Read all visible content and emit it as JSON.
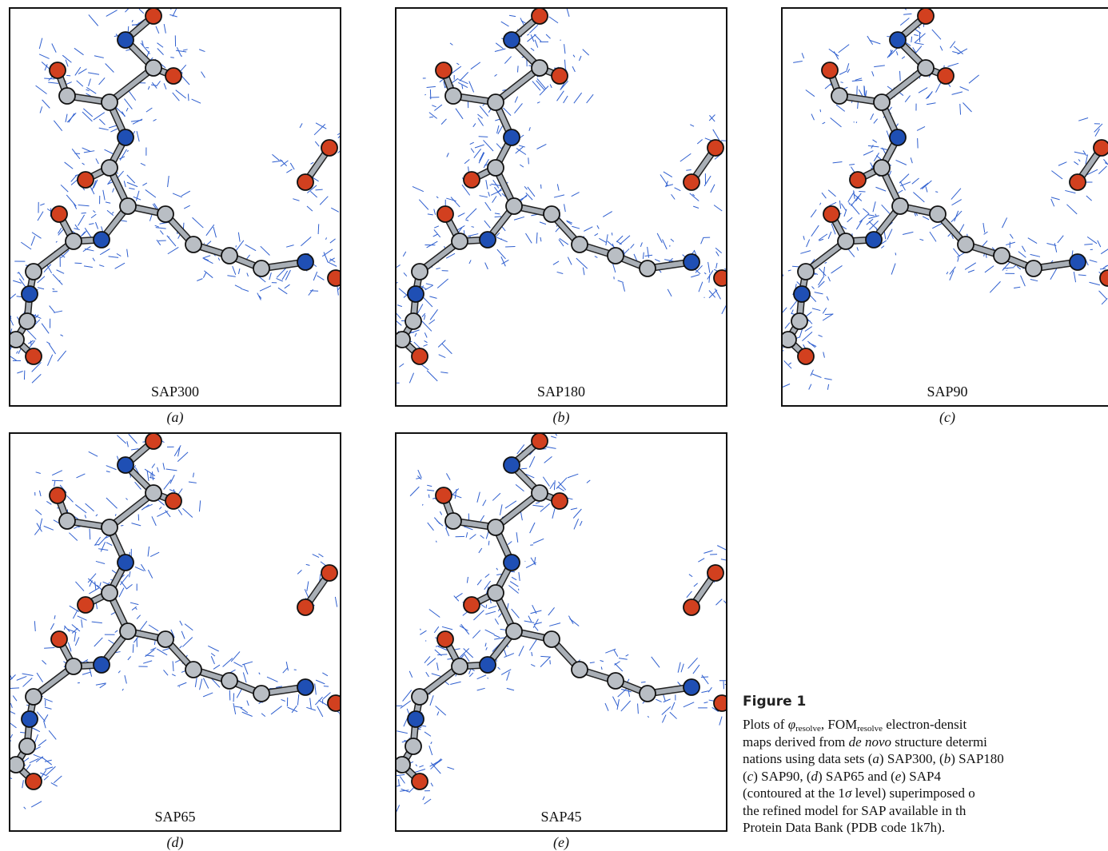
{
  "panels": [
    {
      "name": "SAP300",
      "label": "(a)"
    },
    {
      "name": "SAP180",
      "label": "(b)"
    },
    {
      "name": "SAP90",
      "label": "(c)"
    },
    {
      "name": "SAP65",
      "label": "(d)"
    },
    {
      "name": "SAP45",
      "label": "(e)"
    }
  ],
  "caption": {
    "label": "Figure 1",
    "lines": [
      [
        "Plots of ",
        "φ",
        "resolve",
        ", FOM",
        "resolve",
        " electron-densit"
      ],
      [
        "maps derived from ",
        "de novo",
        " structure determi"
      ],
      [
        "nations using data sets (",
        "a",
        ") SAP300, (",
        "b",
        ") SAP180"
      ],
      [
        "(",
        "c",
        ") SAP90, (",
        "d",
        ") SAP65 and (",
        "e",
        ") SAP4"
      ],
      [
        "(contoured at the 1",
        "σ",
        " level) superimposed o"
      ],
      [
        "the refined model for SAP available in th"
      ],
      [
        "Protein Data Bank (PDB code 1k7h)."
      ]
    ]
  }
}
